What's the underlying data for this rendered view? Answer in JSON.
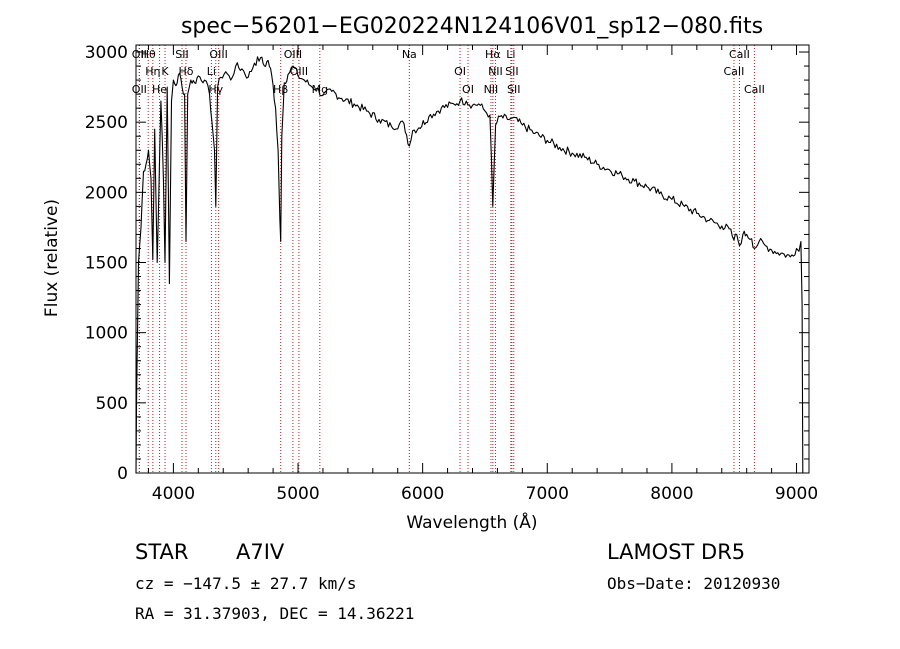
{
  "header": {
    "title": "spec−56201−EG020224N124106V01_sp12−080.fits"
  },
  "info": {
    "object_class": "STAR",
    "subclass": "A7IV",
    "survey": "LAMOST DR5",
    "cz": "cz = −147.5 ± 27.7 km/s",
    "obs_date": "Obs−Date: 20120930",
    "coords": "RA =  31.37903, DEC =  14.36221"
  },
  "chart_data": {
    "type": "line",
    "title": "spec−56201−EG020224N124106V01_sp12−080.fits",
    "xlabel": "Wavelength (Å)",
    "ylabel": "Flux (relative)",
    "xlim": [
      3700,
      9100
    ],
    "ylim": [
      0,
      3050
    ],
    "x_ticks": [
      4000,
      5000,
      6000,
      7000,
      8000,
      9000
    ],
    "y_ticks": [
      0,
      500,
      1000,
      1500,
      2000,
      2500,
      3000
    ],
    "grid": false,
    "series": [
      {
        "x": [
          3700,
          3705,
          3720,
          3740,
          3760,
          3780,
          3800,
          3820,
          3835,
          3850,
          3870,
          3889,
          3900,
          3920,
          3933,
          3950,
          3968,
          3985,
          4000,
          4020,
          4050,
          4070,
          4090,
          4101,
          4115,
          4140,
          4170,
          4200,
          4250,
          4290,
          4310,
          4330,
          4340,
          4355,
          4380,
          4420,
          4460,
          4500,
          4550,
          4600,
          4650,
          4700,
          4730,
          4760,
          4790,
          4820,
          4840,
          4855,
          4861,
          4870,
          4890,
          4920,
          4960,
          5000,
          5050,
          5100,
          5150,
          5200,
          5270,
          5350,
          5450,
          5550,
          5650,
          5750,
          5850,
          5893,
          5920,
          5970,
          6050,
          6150,
          6250,
          6300,
          6350,
          6400,
          6450,
          6500,
          6540,
          6563,
          6585,
          6620,
          6680,
          6720,
          6800,
          6900,
          7000,
          7100,
          7200,
          7300,
          7400,
          7500,
          7600,
          7700,
          7800,
          7900,
          8000,
          8100,
          8200,
          8300,
          8400,
          8460,
          8498,
          8520,
          8542,
          8570,
          8600,
          8640,
          8662,
          8700,
          8750,
          8800,
          8850,
          8900,
          8950,
          9000,
          9020,
          9035,
          9045,
          9050
        ],
        "y": [
          0,
          550,
          1500,
          1750,
          2150,
          2200,
          2300,
          2100,
          1520,
          2450,
          1500,
          2250,
          2650,
          2100,
          1500,
          2750,
          1350,
          2650,
          2800,
          2760,
          2850,
          2750,
          2700,
          1650,
          2700,
          2800,
          2780,
          2830,
          2800,
          2700,
          2500,
          2300,
          1900,
          2750,
          2820,
          2860,
          2800,
          2900,
          2880,
          2820,
          2920,
          2960,
          2900,
          2940,
          2830,
          2600,
          2300,
          1800,
          1650,
          2400,
          2780,
          2840,
          2900,
          2830,
          2800,
          2760,
          2740,
          2690,
          2720,
          2670,
          2630,
          2580,
          2520,
          2470,
          2490,
          2330,
          2440,
          2460,
          2540,
          2600,
          2630,
          2650,
          2650,
          2620,
          2630,
          2580,
          2550,
          1900,
          2480,
          2540,
          2520,
          2530,
          2480,
          2420,
          2370,
          2320,
          2280,
          2250,
          2200,
          2160,
          2120,
          2080,
          2040,
          1990,
          1950,
          1900,
          1850,
          1800,
          1760,
          1740,
          1660,
          1700,
          1620,
          1700,
          1700,
          1670,
          1600,
          1650,
          1620,
          1590,
          1570,
          1560,
          1540,
          1600,
          1580,
          1650,
          1200,
          0
        ]
      }
    ],
    "line_markers": [
      {
        "label": "Hθ",
        "wl": 3798
      },
      {
        "label": "Hη",
        "wl": 3835
      },
      {
        "label": "OII",
        "wl": 3727
      },
      {
        "label": "OII",
        "wl": 3727
      },
      {
        "label": "K",
        "wl": 3933
      },
      {
        "label": "He",
        "wl": 3889
      },
      {
        "label": "SII",
        "wl": 4069
      },
      {
        "label": "Hδ",
        "wl": 4101
      },
      {
        "label": "Hγ",
        "wl": 4340
      },
      {
        "label": "OIII",
        "wl": 4363
      },
      {
        "label": "Li",
        "wl": 4305
      },
      {
        "label": "Hβ",
        "wl": 4861
      },
      {
        "label": "OIII",
        "wl": 4959
      },
      {
        "label": "OIII",
        "wl": 5007
      },
      {
        "label": "Mg",
        "wl": 5175
      },
      {
        "label": "Na",
        "wl": 5893
      },
      {
        "label": "OI",
        "wl": 6300
      },
      {
        "label": "OI",
        "wl": 6364
      },
      {
        "label": "Hα",
        "wl": 6563
      },
      {
        "label": "SII",
        "wl": 6716
      },
      {
        "label": "NII",
        "wl": 6548
      },
      {
        "label": "Li",
        "wl": 6708
      },
      {
        "label": "NII",
        "wl": 6584
      },
      {
        "label": "SII",
        "wl": 6731
      },
      {
        "label": "CaII",
        "wl": 8542
      },
      {
        "label": "CaII",
        "wl": 8498
      },
      {
        "label": "CaII",
        "wl": 8662
      }
    ]
  }
}
